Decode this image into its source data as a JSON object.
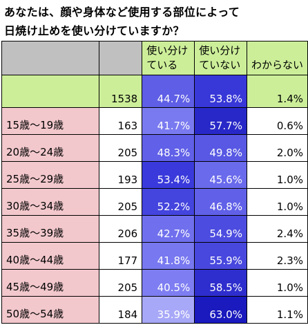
{
  "title": {
    "line1": "あなたは、顔や身体など使用する部位によって",
    "line2": "日焼け止めを使い分けていますか？"
  },
  "chart_data": {
    "type": "table",
    "columns": [
      "",
      "",
      "使い分けている",
      "使い分けていない",
      "わからない"
    ],
    "header": {
      "col2_line1": "使い分け",
      "col2_line2": "ている",
      "col3_line1": "使い分け",
      "col3_line2": "ていない",
      "col4": "わからない"
    },
    "total": {
      "label": "",
      "n": "1538",
      "use": "44.7%",
      "not_use": "53.8%",
      "unknown": "1.4%"
    },
    "rows": [
      {
        "label": "15歳～19歳",
        "n": "163",
        "use": "41.7%",
        "not_use": "57.7%",
        "unknown": "0.6%"
      },
      {
        "label": "20歳～24歳",
        "n": "205",
        "use": "48.3%",
        "not_use": "49.8%",
        "unknown": "2.0%"
      },
      {
        "label": "25歳～29歳",
        "n": "193",
        "use": "53.4%",
        "not_use": "45.6%",
        "unknown": "1.0%"
      },
      {
        "label": "30歳～34歳",
        "n": "205",
        "use": "52.2%",
        "not_use": "46.8%",
        "unknown": "1.0%"
      },
      {
        "label": "35歳～39歳",
        "n": "206",
        "use": "42.7%",
        "not_use": "54.9%",
        "unknown": "2.4%"
      },
      {
        "label": "40歳～44歳",
        "n": "177",
        "use": "41.8%",
        "not_use": "55.9%",
        "unknown": "2.3%"
      },
      {
        "label": "45歳～49歳",
        "n": "205",
        "use": "40.5%",
        "not_use": "58.5%",
        "unknown": "1.0%"
      },
      {
        "label": "50歳～54歳",
        "n": "184",
        "use": "35.9%",
        "not_use": "63.0%",
        "unknown": "1.1%"
      }
    ],
    "heat_colors": {
      "use": [
        "#5e5ee6",
        "#7a7af0",
        "#6060e8",
        "#3a3adc",
        "#4444de",
        "#7070ee",
        "#7878f0",
        "#7e7ef2",
        "#a8a8f8"
      ],
      "not_use": [
        "#3838d8",
        "#2828c8",
        "#5858e4",
        "#6a6aec",
        "#6060e8",
        "#4c4ce0",
        "#4848de",
        "#2e2ece",
        "#1a1abe"
      ]
    },
    "colors": {
      "header_blank": "#c0c0c0",
      "header_green": "#ccee99",
      "row_label_pink": "#f2c8cc"
    }
  }
}
